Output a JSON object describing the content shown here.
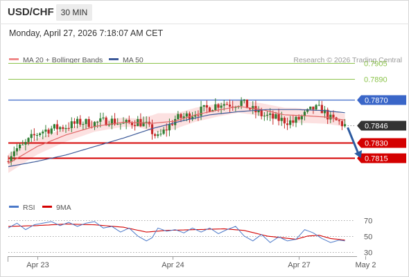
{
  "header": {
    "symbol": "USD/CHF",
    "timeframe": "30 MIN",
    "timestamp": "Monday, April 27, 2026 7:18:07 AM CET"
  },
  "colors": {
    "candle_up": "#2e7d32",
    "candle_down": "#c62828",
    "ma20": "#e06666",
    "band_fill": "#f9c9c9",
    "ma50": "#3d5a99",
    "resistance": "#8bc34a",
    "pivot": "#3a66c8",
    "support": "#d40000",
    "last_price": "#333333",
    "rsi": "#4a78c8",
    "rsi_ma": "#d40000",
    "arrow": "#2c5aa0"
  },
  "chart_data": [
    {
      "type": "candlestick",
      "legend": [
        {
          "name": "MA 20 + Bollinger Bands",
          "color": "#f08a8a"
        },
        {
          "name": "MA 50",
          "color": "#3d5a99"
        }
      ],
      "legend_placement": "top-left",
      "watermark": "Research © 2026 Trading Central",
      "ylim": [
        0.7793,
        0.7924
      ],
      "x_ticks": [
        {
          "label": "Apr 23",
          "index": 10
        },
        {
          "label": "Apr 24",
          "index": 57
        },
        {
          "label": "Apr 27",
          "index": 101
        },
        {
          "label": "May 2",
          "index": 124
        }
      ],
      "bar_count": 118,
      "levels": [
        {
          "label": "0.7905",
          "value": 0.7905,
          "kind": "resistance"
        },
        {
          "label": "0.7890",
          "value": 0.789,
          "kind": "resistance"
        },
        {
          "label": "0.7870",
          "value": 0.787,
          "kind": "pivot"
        },
        {
          "label": "0.7846",
          "value": 0.7846,
          "kind": "last"
        },
        {
          "label": "0.7830",
          "value": 0.783,
          "kind": "support"
        },
        {
          "label": "0.7815",
          "value": 0.7815,
          "kind": "support"
        }
      ],
      "close_path": [
        [
          0,
          0.7816
        ],
        [
          2,
          0.7823
        ],
        [
          5,
          0.7826
        ],
        [
          8,
          0.7834
        ],
        [
          11,
          0.784
        ],
        [
          15,
          0.7843
        ],
        [
          20,
          0.7845
        ],
        [
          25,
          0.7849
        ],
        [
          30,
          0.7848
        ],
        [
          35,
          0.7851
        ],
        [
          40,
          0.7847
        ],
        [
          45,
          0.785
        ],
        [
          48,
          0.7846
        ],
        [
          52,
          0.7834
        ],
        [
          55,
          0.7843
        ],
        [
          58,
          0.7852
        ],
        [
          62,
          0.7855
        ],
        [
          66,
          0.7859
        ],
        [
          70,
          0.7863
        ],
        [
          74,
          0.7867
        ],
        [
          78,
          0.7866
        ],
        [
          81,
          0.7868
        ],
        [
          84,
          0.7862
        ],
        [
          88,
          0.7856
        ],
        [
          92,
          0.7853
        ],
        [
          95,
          0.7851
        ],
        [
          99,
          0.7849
        ],
        [
          102,
          0.7854
        ],
        [
          106,
          0.7862
        ],
        [
          109,
          0.7861
        ],
        [
          112,
          0.7852
        ],
        [
          115,
          0.7849
        ],
        [
          117,
          0.7846
        ]
      ],
      "ma20_path": [
        [
          0,
          0.781
        ],
        [
          10,
          0.7826
        ],
        [
          20,
          0.7837
        ],
        [
          30,
          0.7845
        ],
        [
          40,
          0.7849
        ],
        [
          50,
          0.7848
        ],
        [
          58,
          0.785
        ],
        [
          65,
          0.7856
        ],
        [
          72,
          0.786
        ],
        [
          80,
          0.7864
        ],
        [
          88,
          0.7861
        ],
        [
          96,
          0.7856
        ],
        [
          104,
          0.7855
        ],
        [
          110,
          0.7854
        ],
        [
          117,
          0.7851
        ]
      ],
      "band_width_path": [
        [
          0,
          0.0009
        ],
        [
          15,
          0.0007
        ],
        [
          30,
          0.0005
        ],
        [
          45,
          0.0004
        ],
        [
          52,
          0.0009
        ],
        [
          60,
          0.0007
        ],
        [
          75,
          0.0006
        ],
        [
          88,
          0.0006
        ],
        [
          100,
          0.0007
        ],
        [
          117,
          0.0006
        ]
      ],
      "ma50_path": [
        [
          0,
          0.7807
        ],
        [
          10,
          0.7812
        ],
        [
          20,
          0.7818
        ],
        [
          30,
          0.7826
        ],
        [
          40,
          0.7834
        ],
        [
          50,
          0.7843
        ],
        [
          60,
          0.785
        ],
        [
          70,
          0.7856
        ],
        [
          80,
          0.7859
        ],
        [
          90,
          0.7861
        ],
        [
          100,
          0.7861
        ],
        [
          110,
          0.786
        ],
        [
          117,
          0.7858
        ]
      ],
      "forecast_arrow": {
        "from": [
          117,
          0.7844
        ],
        "to": [
          124,
          0.7815
        ]
      }
    },
    {
      "type": "line",
      "legend": [
        {
          "name": "RSI",
          "color": "#4a78c8"
        },
        {
          "name": "9MA",
          "color": "#d40000"
        }
      ],
      "ylim": [
        25,
        80
      ],
      "y_ticks": [
        {
          "label": "70",
          "value": 70
        },
        {
          "label": "50",
          "value": 50
        },
        {
          "label": "30",
          "value": 30
        }
      ],
      "rsi_path": [
        [
          0,
          60
        ],
        [
          3,
          66
        ],
        [
          6,
          58
        ],
        [
          9,
          64
        ],
        [
          12,
          66
        ],
        [
          15,
          68
        ],
        [
          18,
          63
        ],
        [
          21,
          67
        ],
        [
          24,
          62
        ],
        [
          27,
          66
        ],
        [
          30,
          68
        ],
        [
          33,
          60
        ],
        [
          36,
          62
        ],
        [
          39,
          55
        ],
        [
          42,
          60
        ],
        [
          45,
          50
        ],
        [
          48,
          44
        ],
        [
          50,
          48
        ],
        [
          52,
          60
        ],
        [
          55,
          56
        ],
        [
          58,
          58
        ],
        [
          61,
          54
        ],
        [
          64,
          60
        ],
        [
          67,
          55
        ],
        [
          70,
          60
        ],
        [
          73,
          53
        ],
        [
          76,
          58
        ],
        [
          79,
          62
        ],
        [
          82,
          50
        ],
        [
          85,
          44
        ],
        [
          88,
          52
        ],
        [
          91,
          42
        ],
        [
          94,
          49
        ],
        [
          97,
          44
        ],
        [
          100,
          46
        ],
        [
          103,
          58
        ],
        [
          106,
          54
        ],
        [
          109,
          47
        ],
        [
          112,
          42
        ],
        [
          115,
          45
        ],
        [
          117,
          44
        ]
      ],
      "rsi_ma_path": [
        [
          0,
          62
        ],
        [
          10,
          63
        ],
        [
          20,
          65
        ],
        [
          30,
          64
        ],
        [
          40,
          61
        ],
        [
          48,
          55
        ],
        [
          55,
          57
        ],
        [
          65,
          58
        ],
        [
          75,
          59
        ],
        [
          82,
          57
        ],
        [
          90,
          50
        ],
        [
          100,
          46
        ],
        [
          104,
          50
        ],
        [
          108,
          51
        ],
        [
          112,
          47
        ],
        [
          117,
          45
        ]
      ]
    }
  ]
}
